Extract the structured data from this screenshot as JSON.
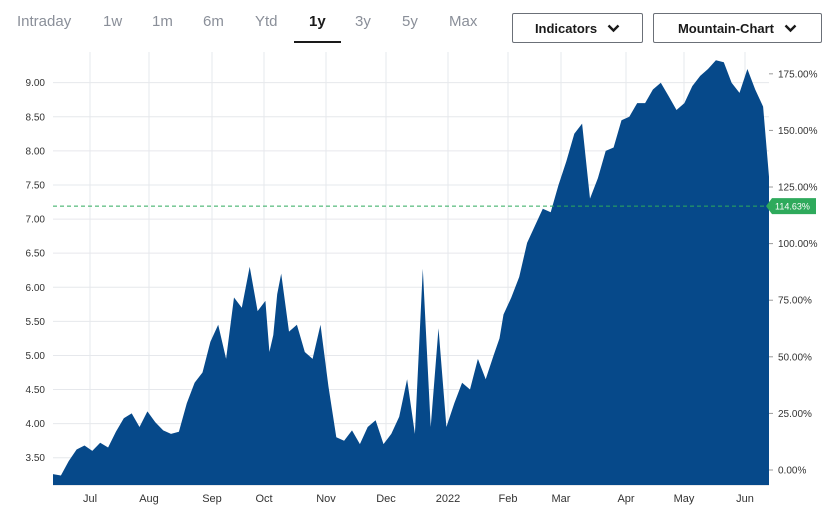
{
  "range_tabs": [
    "Intraday",
    "1w",
    "1m",
    "6m",
    "Ytd",
    "1y",
    "3y",
    "5y",
    "Max"
  ],
  "active_tab": "1y",
  "indicators_label": "Indicators",
  "chart_type_label": "Mountain-Chart",
  "colors": {
    "area": "#06498a",
    "reference_line": "#2eaa5c",
    "badge": "#2eaa5c"
  },
  "chart_data": {
    "type": "area",
    "title": "",
    "xlabel": "",
    "ylabel": "",
    "x_ticks": [
      "Jul",
      "Aug",
      "Sep",
      "Oct",
      "Nov",
      "Dec",
      "2022",
      "Feb",
      "Mar",
      "Apr",
      "May",
      "Jun"
    ],
    "y_left_ticks": [
      "3.50",
      "4.00",
      "4.50",
      "5.00",
      "5.50",
      "6.00",
      "6.50",
      "7.00",
      "7.50",
      "8.00",
      "8.50",
      "9.00"
    ],
    "y_right_ticks": [
      "0.00%",
      "25.00%",
      "50.00%",
      "75.00%",
      "100.00%",
      "125.00%",
      "150.00%",
      "175.00%"
    ],
    "ylim": [
      3.1,
      9.45
    ],
    "reference_value": 7.19,
    "reference_label": "114.63%",
    "grid": true,
    "series": [
      {
        "x": [
          "2021-06-14",
          "2021-06-18",
          "2021-06-22",
          "2021-06-26",
          "2021-06-30",
          "2021-07-04",
          "2021-07-08",
          "2021-07-12",
          "2021-07-16",
          "2021-07-20",
          "2021-07-24",
          "2021-07-28",
          "2021-08-01",
          "2021-08-05",
          "2021-08-09",
          "2021-08-13",
          "2021-08-17",
          "2021-08-21",
          "2021-08-25",
          "2021-08-29",
          "2021-09-02",
          "2021-09-06",
          "2021-09-10",
          "2021-09-14",
          "2021-09-18",
          "2021-09-22",
          "2021-09-26",
          "2021-09-30",
          "2021-10-02",
          "2021-10-04",
          "2021-10-06",
          "2021-10-08",
          "2021-10-12",
          "2021-10-16",
          "2021-10-20",
          "2021-10-24",
          "2021-10-28",
          "2021-11-01",
          "2021-11-05",
          "2021-11-09",
          "2021-11-13",
          "2021-11-17",
          "2021-11-21",
          "2021-11-25",
          "2021-11-29",
          "2021-12-03",
          "2021-12-07",
          "2021-12-11",
          "2021-12-15",
          "2021-12-19",
          "2021-12-23",
          "2021-12-27",
          "2021-12-31",
          "2022-01-04",
          "2022-01-08",
          "2022-01-12",
          "2022-01-16",
          "2022-01-20",
          "2022-01-24",
          "2022-01-27",
          "2022-01-29",
          "2022-02-02",
          "2022-02-06",
          "2022-02-10",
          "2022-02-14",
          "2022-02-18",
          "2022-02-22",
          "2022-02-26",
          "2022-03-02",
          "2022-03-06",
          "2022-03-10",
          "2022-03-14",
          "2022-03-18",
          "2022-03-22",
          "2022-03-26",
          "2022-03-30",
          "2022-04-03",
          "2022-04-07",
          "2022-04-11",
          "2022-04-15",
          "2022-04-19",
          "2022-04-23",
          "2022-04-27",
          "2022-05-01",
          "2022-05-05",
          "2022-05-09",
          "2022-05-13",
          "2022-05-17",
          "2022-05-21",
          "2022-05-25",
          "2022-05-29",
          "2022-06-02",
          "2022-06-06",
          "2022-06-10",
          "2022-06-13"
        ],
        "values": [
          3.26,
          3.24,
          3.45,
          3.62,
          3.68,
          3.6,
          3.72,
          3.65,
          3.88,
          4.08,
          4.15,
          3.95,
          4.18,
          4.02,
          3.9,
          3.85,
          3.88,
          4.3,
          4.6,
          4.75,
          5.2,
          5.45,
          4.95,
          5.85,
          5.7,
          6.3,
          5.65,
          5.8,
          5.05,
          5.3,
          5.9,
          6.2,
          5.35,
          5.45,
          5.05,
          4.95,
          5.45,
          4.55,
          3.8,
          3.75,
          3.9,
          3.7,
          3.95,
          4.05,
          3.7,
          3.85,
          4.1,
          4.65,
          3.85,
          6.27,
          3.95,
          5.4,
          3.95,
          4.3,
          4.6,
          4.5,
          4.95,
          4.65,
          5.0,
          5.25,
          5.6,
          5.85,
          6.15,
          6.65,
          6.9,
          7.15,
          7.1,
          7.5,
          7.85,
          8.25,
          8.4,
          7.3,
          7.6,
          8.0,
          8.05,
          8.45,
          8.5,
          8.7,
          8.7,
          8.9,
          9.0,
          8.8,
          8.6,
          8.7,
          8.95,
          9.1,
          9.2,
          9.33,
          9.3,
          9.0,
          8.85,
          9.2,
          8.9,
          8.65,
          7.62
        ]
      }
    ]
  }
}
